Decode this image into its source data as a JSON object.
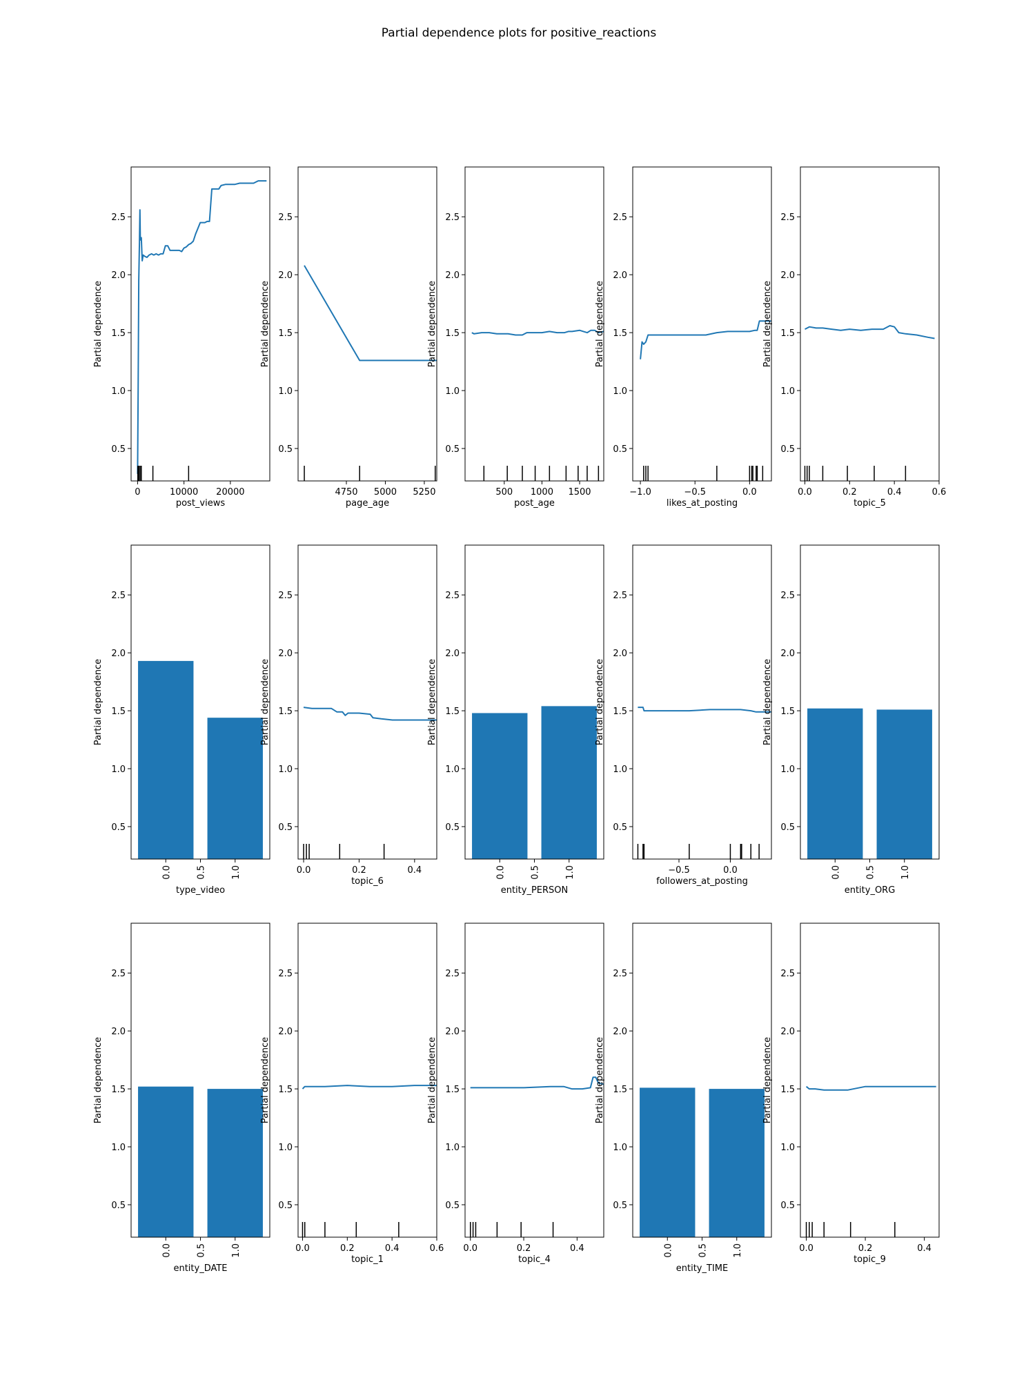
{
  "figure_title": "Partial dependence plots for positive_reactions",
  "colors": {
    "line": "#1f77b4",
    "bar": "#1f77b4",
    "axis": "#000000",
    "deciles": "#000000"
  },
  "chart_data": [
    {
      "type": "line",
      "xlabel": "post_views",
      "ylabel": "Partial dependence",
      "xlim": [
        -1400,
        28500
      ],
      "ylim": [
        0.22,
        2.93
      ],
      "xticks": [
        0,
        10000,
        20000
      ],
      "xtick_labels": [
        "0",
        "10000",
        "20000"
      ],
      "yticks": [
        0.5,
        1.0,
        1.5,
        2.0,
        2.5
      ],
      "ytick_labels": [
        "0.5",
        "1.0",
        "1.5",
        "2.0",
        "2.5"
      ],
      "deciles": [
        50,
        150,
        300,
        550,
        800,
        3300,
        11000
      ],
      "x": [
        0,
        120,
        250,
        400,
        500,
        600,
        800,
        1000,
        1200,
        1500,
        2000,
        2500,
        3000,
        3500,
        4000,
        4500,
        5000,
        5500,
        6000,
        6500,
        7000,
        7500,
        8000,
        8500,
        9000,
        9500,
        10000,
        10500,
        11000,
        11500,
        12000,
        12500,
        13000,
        13500,
        14000,
        14500,
        15000,
        15500,
        16000,
        16500,
        17000,
        17500,
        18000,
        19000,
        20000,
        21000,
        22000,
        23000,
        24000,
        25000,
        26000,
        27000,
        27800
      ],
      "y": [
        0.28,
        1.0,
        1.95,
        2.28,
        2.56,
        2.3,
        2.32,
        2.12,
        2.17,
        2.16,
        2.15,
        2.17,
        2.18,
        2.17,
        2.18,
        2.17,
        2.18,
        2.18,
        2.25,
        2.25,
        2.21,
        2.21,
        2.21,
        2.21,
        2.21,
        2.2,
        2.23,
        2.24,
        2.26,
        2.27,
        2.29,
        2.35,
        2.4,
        2.45,
        2.45,
        2.45,
        2.46,
        2.46,
        2.74,
        2.74,
        2.74,
        2.74,
        2.77,
        2.78,
        2.78,
        2.78,
        2.79,
        2.79,
        2.79,
        2.79,
        2.81,
        2.81,
        2.81
      ]
    },
    {
      "type": "line",
      "xlabel": "page_age",
      "ylabel": "Partial dependence",
      "xlim": [
        4440,
        5330
      ],
      "ylim": [
        0.22,
        2.93
      ],
      "xticks": [
        4750,
        5000,
        5250
      ],
      "xtick_labels": [
        "4750",
        "5000",
        "5250"
      ],
      "yticks": [
        0.5,
        1.0,
        1.5,
        2.0,
        2.5
      ],
      "ytick_labels": [
        "0.5",
        "1.0",
        "1.5",
        "2.0",
        "2.5"
      ],
      "deciles": [
        4480,
        4835,
        5320
      ],
      "x": [
        4480,
        4835,
        5330
      ],
      "y": [
        2.08,
        1.26,
        1.26
      ]
    },
    {
      "type": "line",
      "xlabel": "post_age",
      "ylabel": "Partial dependence",
      "xlim": [
        -20,
        1820
      ],
      "ylim": [
        0.22,
        2.93
      ],
      "xticks": [
        500,
        1000,
        1500
      ],
      "xtick_labels": [
        "500",
        "1000",
        "1500"
      ],
      "yticks": [
        0.5,
        1.0,
        1.5,
        2.0,
        2.5
      ],
      "ytick_labels": [
        "0.5",
        "1.0",
        "1.5",
        "2.0",
        "2.5"
      ],
      "deciles": [
        230,
        540,
        740,
        910,
        1100,
        1320,
        1480,
        1600,
        1750
      ],
      "x": [
        70,
        100,
        200,
        300,
        400,
        500,
        550,
        650,
        740,
        800,
        900,
        1000,
        1100,
        1200,
        1300,
        1350,
        1400,
        1500,
        1550,
        1600,
        1650,
        1700,
        1750,
        1820
      ],
      "y": [
        1.5,
        1.49,
        1.5,
        1.5,
        1.49,
        1.49,
        1.49,
        1.48,
        1.48,
        1.5,
        1.5,
        1.5,
        1.51,
        1.5,
        1.5,
        1.51,
        1.51,
        1.52,
        1.51,
        1.5,
        1.52,
        1.52,
        1.5,
        1.51
      ]
    },
    {
      "type": "line",
      "xlabel": "likes_at_posting",
      "ylabel": "Partial dependence",
      "xlim": [
        -1.07,
        0.2
      ],
      "ylim": [
        0.22,
        2.93
      ],
      "xticks": [
        -1.0,
        -0.5,
        0.0
      ],
      "xtick_labels": [
        "−1.0",
        "−0.5",
        "0.0"
      ],
      "yticks": [
        0.5,
        1.0,
        1.5,
        2.0,
        2.5
      ],
      "ytick_labels": [
        "0.5",
        "1.0",
        "1.5",
        "2.0",
        "2.5"
      ],
      "deciles": [
        -0.97,
        -0.95,
        -0.93,
        -0.3,
        0.0,
        0.02,
        0.03,
        0.06,
        0.07,
        0.12
      ],
      "x": [
        -1.0,
        -0.985,
        -0.97,
        -0.95,
        -0.93,
        -0.9,
        -0.6,
        -0.4,
        -0.3,
        -0.2,
        -0.1,
        0.0,
        0.05,
        0.07,
        0.09,
        0.12,
        0.15,
        0.2
      ],
      "y": [
        1.27,
        1.42,
        1.4,
        1.42,
        1.48,
        1.48,
        1.48,
        1.48,
        1.5,
        1.51,
        1.51,
        1.51,
        1.52,
        1.52,
        1.6,
        1.6,
        1.6,
        1.6
      ]
    },
    {
      "type": "line",
      "xlabel": "topic_5",
      "ylabel": "Partial dependence",
      "xlim": [
        -0.02,
        0.6
      ],
      "ylim": [
        0.22,
        2.93
      ],
      "xticks": [
        0.0,
        0.2,
        0.4,
        0.6
      ],
      "xtick_labels": [
        "0.0",
        "0.2",
        "0.4",
        "0.6"
      ],
      "yticks": [
        0.5,
        1.0,
        1.5,
        2.0,
        2.5
      ],
      "ytick_labels": [
        "0.5",
        "1.0",
        "1.5",
        "2.0",
        "2.5"
      ],
      "deciles": [
        0.0,
        0.01,
        0.02,
        0.08,
        0.19,
        0.31,
        0.45
      ],
      "x": [
        0.0,
        0.02,
        0.05,
        0.08,
        0.12,
        0.16,
        0.2,
        0.25,
        0.3,
        0.35,
        0.38,
        0.4,
        0.42,
        0.45,
        0.5,
        0.55,
        0.58
      ],
      "y": [
        1.53,
        1.55,
        1.54,
        1.54,
        1.53,
        1.52,
        1.53,
        1.52,
        1.53,
        1.53,
        1.56,
        1.55,
        1.5,
        1.49,
        1.48,
        1.46,
        1.45
      ]
    },
    {
      "type": "bar",
      "xlabel": "type_video",
      "ylabel": "Partial dependence",
      "xlim": [
        -0.5,
        1.5
      ],
      "ylim": [
        0.22,
        2.93
      ],
      "categories": [
        "0.0",
        "1.0"
      ],
      "values": [
        1.93,
        1.44
      ],
      "xticks": [
        0.0,
        0.5,
        1.0
      ],
      "xtick_labels": [
        "0.0",
        "0.5",
        "1.0"
      ],
      "yticks": [
        0.5,
        1.0,
        1.5,
        2.0,
        2.5
      ],
      "ytick_labels": [
        "0.5",
        "1.0",
        "1.5",
        "2.0",
        "2.5"
      ]
    },
    {
      "type": "line",
      "xlabel": "topic_6",
      "ylabel": "Partial dependence",
      "xlim": [
        -0.02,
        0.48
      ],
      "ylim": [
        0.22,
        2.93
      ],
      "xticks": [
        0.0,
        0.2,
        0.4
      ],
      "xtick_labels": [
        "0.0",
        "0.2",
        "0.4"
      ],
      "yticks": [
        0.5,
        1.0,
        1.5,
        2.0,
        2.5
      ],
      "ytick_labels": [
        "0.5",
        "1.0",
        "1.5",
        "2.0",
        "2.5"
      ],
      "deciles": [
        0.0,
        0.01,
        0.02,
        0.13,
        0.29
      ],
      "x": [
        0.0,
        0.03,
        0.06,
        0.1,
        0.12,
        0.14,
        0.15,
        0.16,
        0.2,
        0.24,
        0.25,
        0.28,
        0.32,
        0.36,
        0.4,
        0.48
      ],
      "y": [
        1.53,
        1.52,
        1.52,
        1.52,
        1.49,
        1.49,
        1.46,
        1.48,
        1.48,
        1.47,
        1.44,
        1.43,
        1.42,
        1.42,
        1.42,
        1.42
      ]
    },
    {
      "type": "bar",
      "xlabel": "entity_PERSON",
      "ylabel": "Partial dependence",
      "xlim": [
        -0.5,
        1.5
      ],
      "ylim": [
        0.22,
        2.93
      ],
      "categories": [
        "0.0",
        "1.0"
      ],
      "values": [
        1.48,
        1.54
      ],
      "xticks": [
        0.0,
        0.5,
        1.0
      ],
      "xtick_labels": [
        "0.0",
        "0.5",
        "1.0"
      ],
      "yticks": [
        0.5,
        1.0,
        1.5,
        2.0,
        2.5
      ],
      "ytick_labels": [
        "0.5",
        "1.0",
        "1.5",
        "2.0",
        "2.5"
      ]
    },
    {
      "type": "line",
      "xlabel": "followers_at_posting",
      "ylabel": "Partial dependence",
      "xlim": [
        -0.95,
        0.4
      ],
      "ylim": [
        0.22,
        2.93
      ],
      "xticks": [
        -0.5,
        0.0
      ],
      "xtick_labels": [
        "−0.5",
        "0.0"
      ],
      "yticks": [
        0.5,
        1.0,
        1.5,
        2.0,
        2.5
      ],
      "ytick_labels": [
        "0.5",
        "1.0",
        "1.5",
        "2.0",
        "2.5"
      ],
      "deciles": [
        -0.9,
        -0.85,
        -0.84,
        -0.4,
        0.0,
        0.1,
        0.11,
        0.2,
        0.28
      ],
      "x": [
        -0.9,
        -0.85,
        -0.84,
        -0.6,
        -0.4,
        -0.2,
        0.0,
        0.1,
        0.2,
        0.25,
        0.3,
        0.4
      ],
      "y": [
        1.53,
        1.53,
        1.5,
        1.5,
        1.5,
        1.51,
        1.51,
        1.51,
        1.5,
        1.49,
        1.49,
        1.49
      ]
    },
    {
      "type": "bar",
      "xlabel": "entity_ORG",
      "ylabel": "Partial dependence",
      "xlim": [
        -0.5,
        1.5
      ],
      "ylim": [
        0.22,
        2.93
      ],
      "categories": [
        "0.0",
        "1.0"
      ],
      "values": [
        1.52,
        1.51
      ],
      "xticks": [
        0.0,
        0.5,
        1.0
      ],
      "xtick_labels": [
        "0.0",
        "0.5",
        "1.0"
      ],
      "yticks": [
        0.5,
        1.0,
        1.5,
        2.0,
        2.5
      ],
      "ytick_labels": [
        "0.5",
        "1.0",
        "1.5",
        "2.0",
        "2.5"
      ]
    },
    {
      "type": "bar",
      "xlabel": "entity_DATE",
      "ylabel": "Partial dependence",
      "xlim": [
        -0.5,
        1.5
      ],
      "ylim": [
        0.22,
        2.93
      ],
      "categories": [
        "0.0",
        "1.0"
      ],
      "values": [
        1.52,
        1.5
      ],
      "xticks": [
        0.0,
        0.5,
        1.0
      ],
      "xtick_labels": [
        "0.0",
        "0.5",
        "1.0"
      ],
      "yticks": [
        0.5,
        1.0,
        1.5,
        2.0,
        2.5
      ],
      "ytick_labels": [
        "0.5",
        "1.0",
        "1.5",
        "2.0",
        "2.5"
      ]
    },
    {
      "type": "line",
      "xlabel": "topic_1",
      "ylabel": "Partial dependence",
      "xlim": [
        -0.02,
        0.6
      ],
      "ylim": [
        0.22,
        2.93
      ],
      "xticks": [
        0.0,
        0.2,
        0.4,
        0.6
      ],
      "xtick_labels": [
        "0.0",
        "0.2",
        "0.4",
        "0.6"
      ],
      "yticks": [
        0.5,
        1.0,
        1.5,
        2.0,
        2.5
      ],
      "ytick_labels": [
        "0.5",
        "1.0",
        "1.5",
        "2.0",
        "2.5"
      ],
      "deciles": [
        0.0,
        0.01,
        0.1,
        0.24,
        0.43
      ],
      "x": [
        0.0,
        0.01,
        0.05,
        0.1,
        0.2,
        0.3,
        0.4,
        0.5,
        0.6
      ],
      "y": [
        1.5,
        1.52,
        1.52,
        1.52,
        1.53,
        1.52,
        1.52,
        1.53,
        1.53
      ]
    },
    {
      "type": "line",
      "xlabel": "topic_4",
      "ylabel": "Partial dependence",
      "xlim": [
        -0.02,
        0.5
      ],
      "ylim": [
        0.22,
        2.93
      ],
      "xticks": [
        0.0,
        0.2,
        0.4
      ],
      "xtick_labels": [
        "0.0",
        "0.2",
        "0.4"
      ],
      "yticks": [
        0.5,
        1.0,
        1.5,
        2.0,
        2.5
      ],
      "ytick_labels": [
        "0.5",
        "1.0",
        "1.5",
        "2.0",
        "2.5"
      ],
      "deciles": [
        0.0,
        0.01,
        0.02,
        0.1,
        0.19,
        0.31
      ],
      "x": [
        0.0,
        0.05,
        0.1,
        0.2,
        0.3,
        0.35,
        0.38,
        0.42,
        0.45,
        0.46,
        0.47,
        0.48,
        0.5
      ],
      "y": [
        1.51,
        1.51,
        1.51,
        1.51,
        1.52,
        1.52,
        1.5,
        1.5,
        1.51,
        1.6,
        1.6,
        1.55,
        1.54
      ]
    },
    {
      "type": "bar",
      "xlabel": "entity_TIME",
      "ylabel": "Partial dependence",
      "xlim": [
        -0.5,
        1.5
      ],
      "ylim": [
        0.22,
        2.93
      ],
      "categories": [
        "0.0",
        "1.0"
      ],
      "values": [
        1.51,
        1.5
      ],
      "xticks": [
        0.0,
        0.5,
        1.0
      ],
      "xtick_labels": [
        "0.0",
        "0.5",
        "1.0"
      ],
      "yticks": [
        0.5,
        1.0,
        1.5,
        2.0,
        2.5
      ],
      "ytick_labels": [
        "0.5",
        "1.0",
        "1.5",
        "2.0",
        "2.5"
      ]
    },
    {
      "type": "line",
      "xlabel": "topic_9",
      "ylabel": "Partial dependence",
      "xlim": [
        -0.02,
        0.45
      ],
      "ylim": [
        0.22,
        2.93
      ],
      "xticks": [
        0.0,
        0.2,
        0.4
      ],
      "xtick_labels": [
        "0.0",
        "0.2",
        "0.4"
      ],
      "yticks": [
        0.5,
        1.0,
        1.5,
        2.0,
        2.5
      ],
      "ytick_labels": [
        "0.5",
        "1.0",
        "1.5",
        "2.0",
        "2.5"
      ],
      "deciles": [
        0.0,
        0.01,
        0.02,
        0.06,
        0.15,
        0.3
      ],
      "x": [
        0.0,
        0.01,
        0.03,
        0.06,
        0.1,
        0.14,
        0.2,
        0.3,
        0.4,
        0.44
      ],
      "y": [
        1.52,
        1.5,
        1.5,
        1.49,
        1.49,
        1.49,
        1.52,
        1.52,
        1.52,
        1.52
      ]
    }
  ]
}
